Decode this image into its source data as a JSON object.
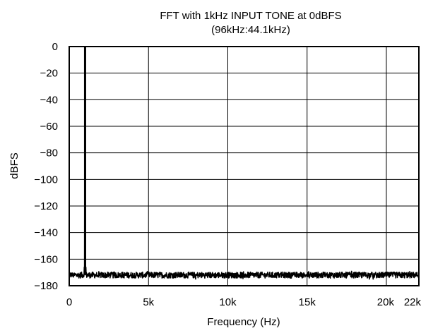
{
  "chart_data": {
    "type": "line",
    "title": "FFT with 1kHz INPUT TONE at 0dBFS",
    "subtitle": "(96kHz:44.1kHz)",
    "xlabel": "Frequency (Hz)",
    "ylabel": "dBFS",
    "xlim": [
      0,
      22050
    ],
    "ylim": [
      -180,
      0
    ],
    "grid": true,
    "x_ticks": [
      {
        "value": 0,
        "label": "0"
      },
      {
        "value": 5000,
        "label": "5k"
      },
      {
        "value": 10000,
        "label": "10k"
      },
      {
        "value": 15000,
        "label": "15k"
      },
      {
        "value": 20000,
        "label": "20k"
      },
      {
        "value": 22050,
        "label": "22k"
      }
    ],
    "y_ticks": [
      {
        "value": 0,
        "label": "0"
      },
      {
        "value": -20,
        "label": "−20"
      },
      {
        "value": -40,
        "label": "−40"
      },
      {
        "value": -60,
        "label": "−60"
      },
      {
        "value": -80,
        "label": "−80"
      },
      {
        "value": -100,
        "label": "−100"
      },
      {
        "value": -120,
        "label": "−120"
      },
      {
        "value": -140,
        "label": "−140"
      },
      {
        "value": -160,
        "label": "−160"
      },
      {
        "value": -180,
        "label": "−180"
      }
    ],
    "series": [
      {
        "color": "#000000",
        "tone_frequency": 1000,
        "tone_level": 0,
        "noise_floor_level": -172,
        "noise_floor_range": [
          -175,
          -168
        ]
      }
    ]
  }
}
